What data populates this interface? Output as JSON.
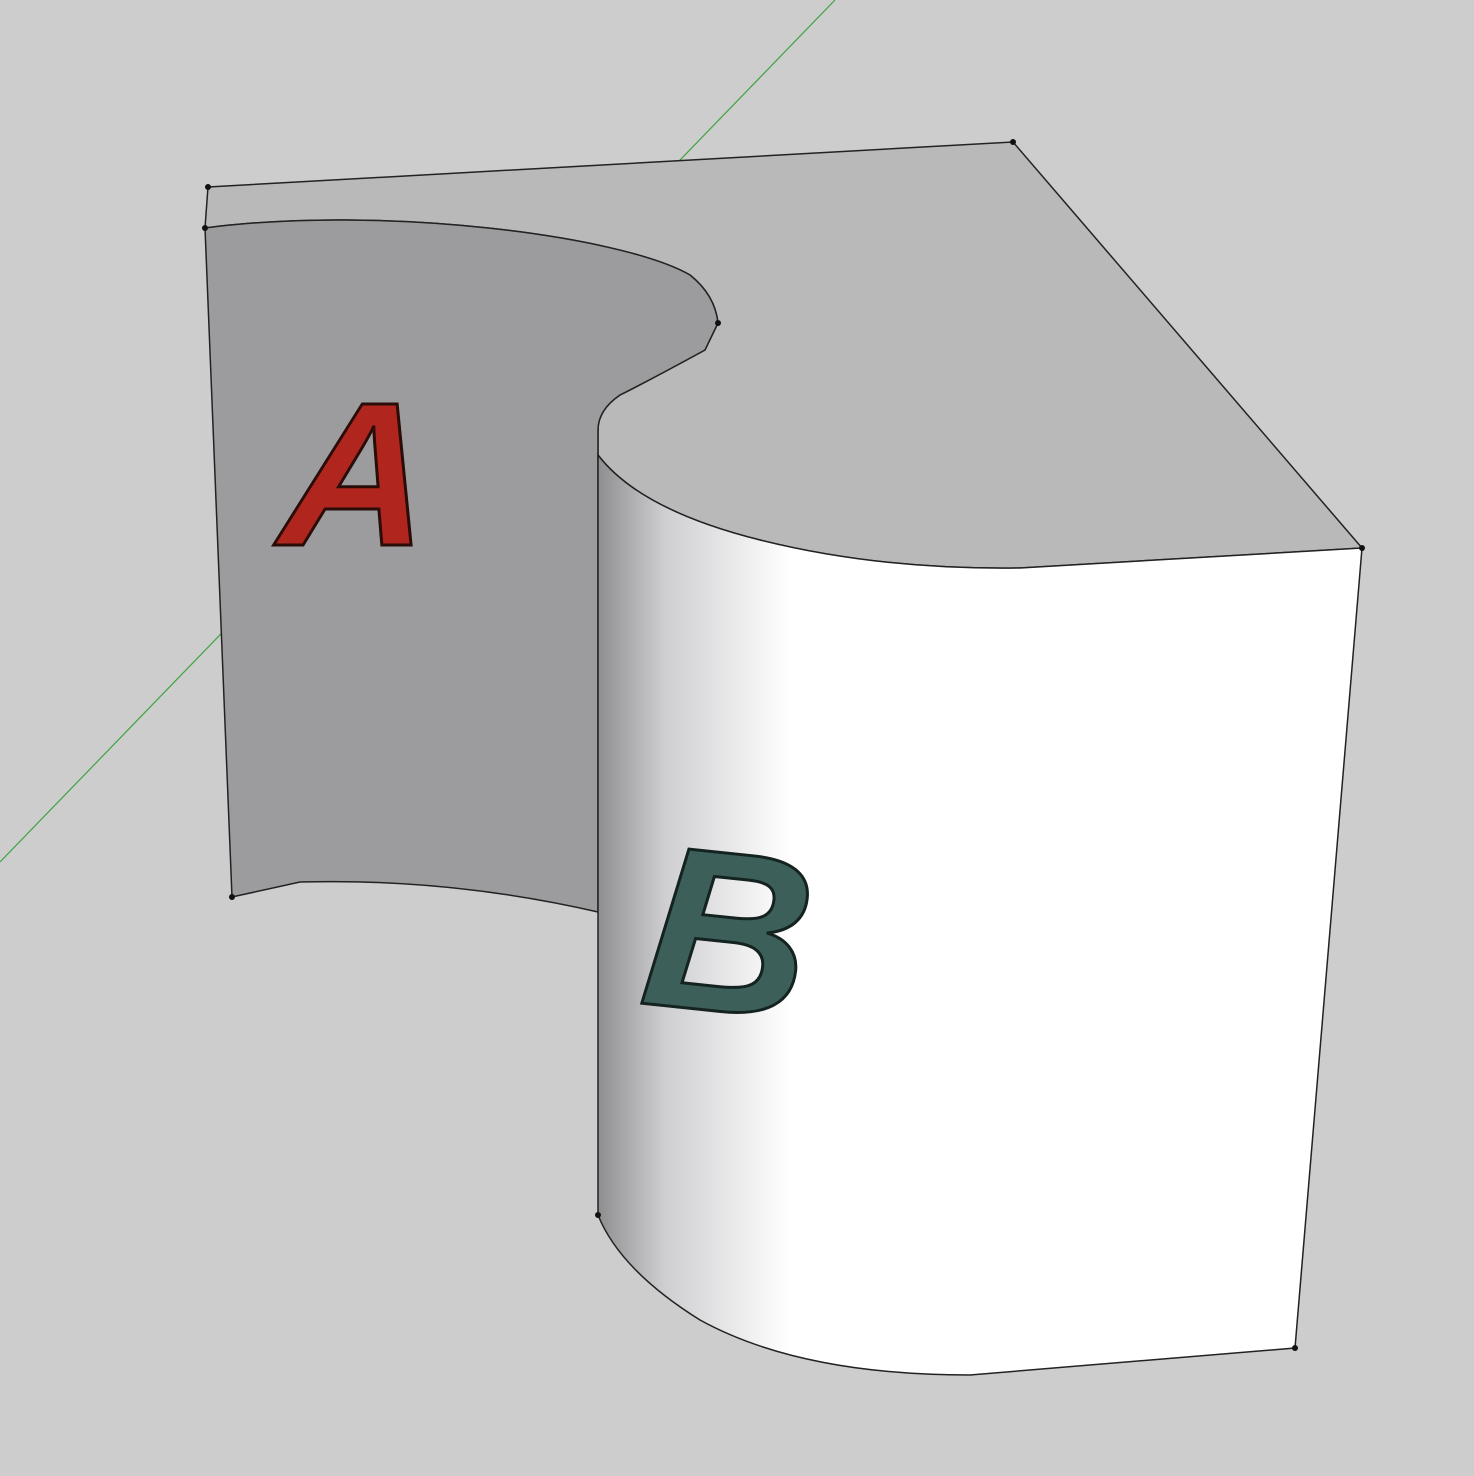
{
  "model": {
    "letters": [
      "A",
      "B"
    ]
  }
}
